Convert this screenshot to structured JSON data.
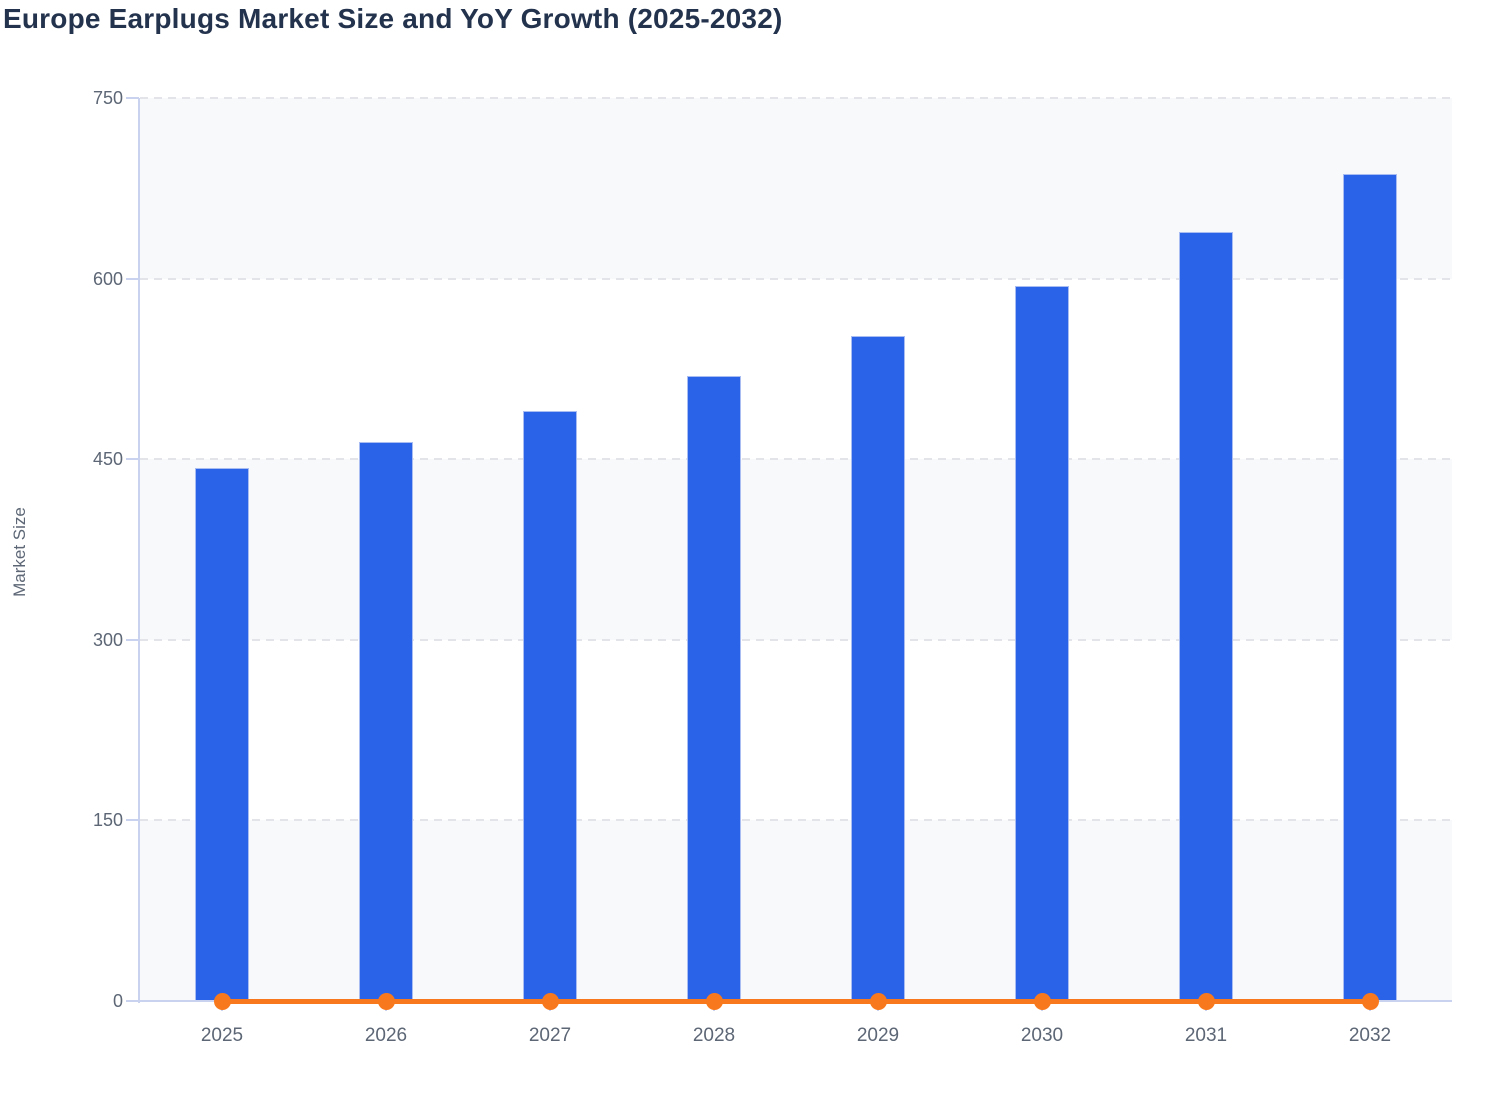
{
  "title": "Europe Earplugs Market Size and YoY Growth (2025-2032)",
  "y_axis": {
    "label": "Market Size"
  },
  "x_axis": {
    "labels": [
      "2025",
      "2026",
      "2027",
      "2028",
      "2029",
      "2030",
      "2031",
      "2032"
    ]
  },
  "chart_data": {
    "type": "bar",
    "subtype": "bars-with-flat-line-overlay",
    "title": "Europe Earplugs Market Size and YoY Growth (2025-2032)",
    "categories": [
      "2025",
      "2026",
      "2027",
      "2028",
      "2029",
      "2030",
      "2031",
      "2032"
    ],
    "series": [
      {
        "name": "Market Size",
        "type": "bar",
        "color": "#2b63e8",
        "values": [
          443,
          464,
          490,
          519,
          552,
          594,
          639,
          687
        ]
      },
      {
        "name": "YoY Growth",
        "type": "line",
        "color": "#f8791d",
        "values": [
          0,
          0,
          0,
          0,
          0,
          0,
          0,
          0
        ]
      }
    ],
    "xlabel": "",
    "ylabel": "Market Size",
    "ylim": [
      0,
      750
    ],
    "yticks": [
      0,
      150,
      300,
      450,
      600,
      750
    ],
    "legend": "none",
    "grid": "horizontal dashed lines at y ticks",
    "plot_background": "alternating horizontal bands"
  },
  "colors": {
    "bar": "#2b63e8",
    "bar_edge": "#a9bdf3",
    "line": "#f8791d",
    "axis": "#c9d3f0",
    "gridline": "#e2e4e9",
    "band": "#f8f9fb",
    "band_alt": "#ffffff",
    "tick_text": "#5c6675",
    "title_text": "#24334d",
    "background": "#ffffff"
  }
}
